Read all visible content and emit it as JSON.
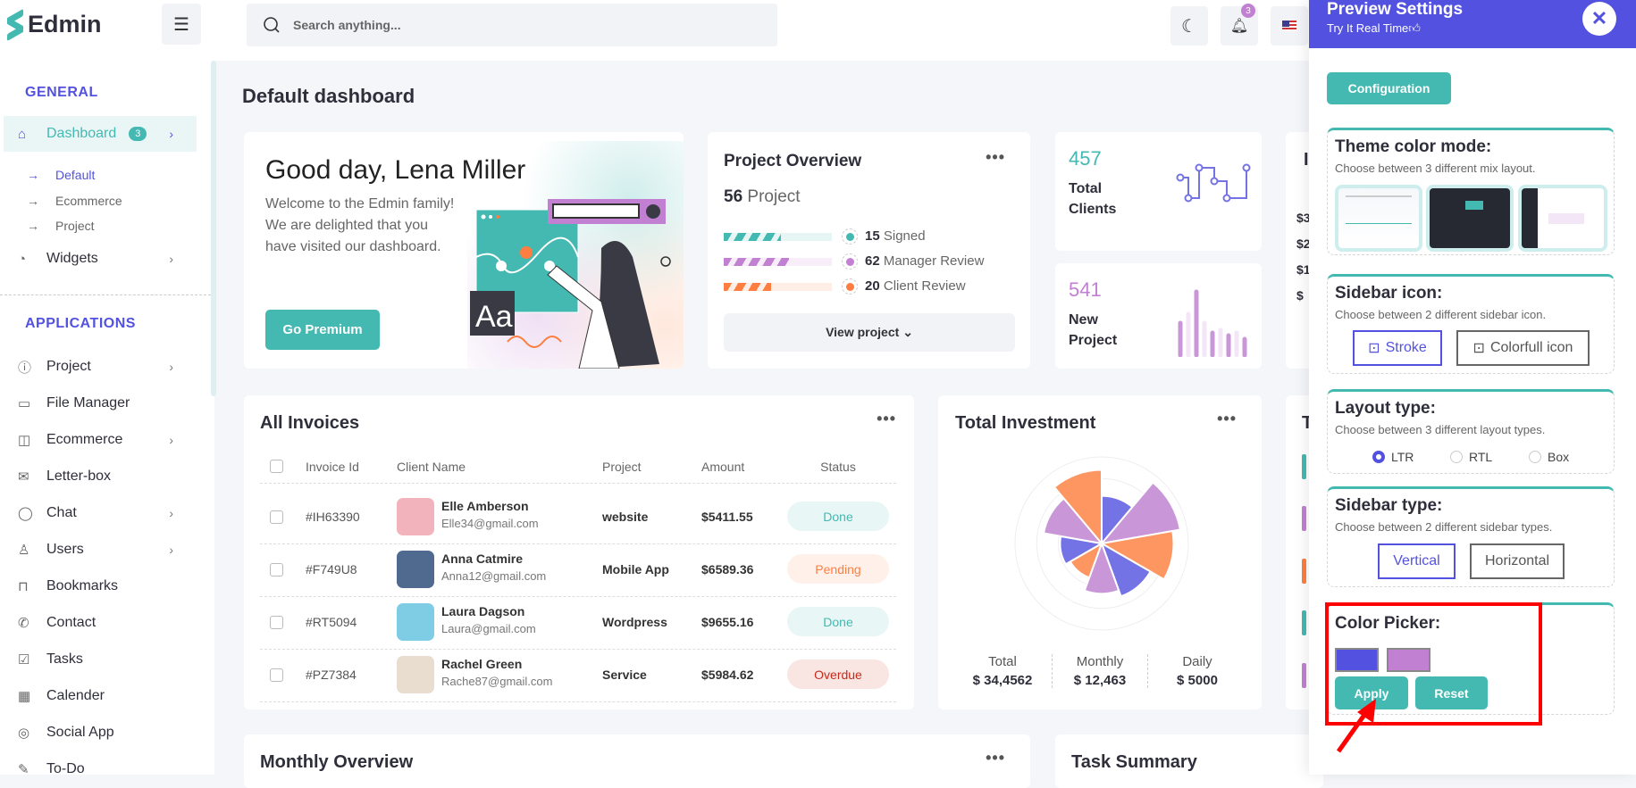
{
  "header": {
    "logo": "Edmin",
    "search_placeholder": "Search anything...",
    "notification_count": "3"
  },
  "sidebar": {
    "general_title": "GENERAL",
    "dashboard": {
      "label": "Dashboard",
      "badge": "3"
    },
    "dashboard_sub": [
      "Default",
      "Ecommerce",
      "Project"
    ],
    "widgets": "Widgets",
    "applications_title": "APPLICATIONS",
    "apps": [
      "Project",
      "File Manager",
      "Ecommerce",
      "Letter-box",
      "Chat",
      "Users",
      "Bookmarks",
      "Contact",
      "Tasks",
      "Calender",
      "Social App",
      "To-Do"
    ]
  },
  "page_title": "Default dashboard",
  "hero": {
    "greeting": "Good day, Lena Miller",
    "line1": "Welcome to the Edmin family!",
    "line2": "We are delighted that you",
    "line3": "have visited our dashboard.",
    "button": "Go Premium",
    "illustration_text": "Aa"
  },
  "project_overview": {
    "title": "Project Overview",
    "count": "56",
    "count_label": "Project",
    "items": [
      {
        "value": "15",
        "label": "Signed",
        "fill": 0.53,
        "color": "#43b9b2"
      },
      {
        "value": "62",
        "label": "Manager Review",
        "fill": 0.6,
        "color": "#c280d2"
      },
      {
        "value": "20",
        "label": "Client Review",
        "fill": 0.44,
        "color": "#fd7e40"
      }
    ],
    "button": "View project"
  },
  "stats": [
    {
      "value": "457",
      "line1": "Total",
      "line2": "Clients",
      "color": "#43b9b2"
    },
    {
      "value": "541",
      "line1": "New",
      "line2": "Project",
      "color": "#c280d2"
    }
  ],
  "partial_card": {
    "title": "I",
    "labels": [
      "$3",
      "$2",
      "$1",
      "$"
    ]
  },
  "invoices": {
    "title": "All Invoices",
    "columns": [
      "Invoice Id",
      "Client Name",
      "Project",
      "Amount",
      "Status"
    ],
    "rows": [
      {
        "id": "#IH63390",
        "name": "Elle Amberson",
        "email": "Elle34@gmail.com",
        "project": "website",
        "amount": "$5411.55",
        "status": "Done"
      },
      {
        "id": "#F749U8",
        "name": "Anna Catmire",
        "email": "Anna12@gmail.com",
        "project": "Mobile App",
        "amount": "$6589.36",
        "status": "Pending"
      },
      {
        "id": "#RT5094",
        "name": "Laura Dagson",
        "email": "Laura@gmail.com",
        "project": "Wordpress",
        "amount": "$9655.16",
        "status": "Done"
      },
      {
        "id": "#PZ7384",
        "name": "Rachel Green",
        "email": "Rache87@gmail.com",
        "project": "Service",
        "amount": "$5984.62",
        "status": "Overdue"
      }
    ]
  },
  "investment": {
    "title": "Total Investment",
    "chart": {
      "type": "polar-area",
      "values": [
        55,
        92,
        83,
        65,
        58,
        42,
        48,
        68,
        85
      ],
      "colors": [
        "#7473e6",
        "#c997d8",
        "#fd9660",
        "#7473e6",
        "#c997d8",
        "#fd9660",
        "#7473e6",
        "#c997d8",
        "#fd9660"
      ],
      "max": 100
    },
    "summary": [
      {
        "label": "Total",
        "value": "$ 34,4562"
      },
      {
        "label": "Monthly",
        "value": "$ 12,463"
      },
      {
        "label": "Daily",
        "value": "$ 5000"
      }
    ]
  },
  "bottom": {
    "monthly": "Monthly Overview",
    "tasks": "Task Summary",
    "partial_title": "T"
  },
  "panel": {
    "title": "Preview Settings",
    "subtitle": "Try It Real Time",
    "config": "Configuration",
    "theme": {
      "title": "Theme color mode:",
      "desc": "Choose between 3 different mix layout."
    },
    "sidebar_icon": {
      "title": "Sidebar icon:",
      "desc": "Choose between 2 different sidebar icon.",
      "options": [
        "Stroke",
        "Colorfull icon"
      ]
    },
    "layout": {
      "title": "Layout type:",
      "desc": "Choose between 3 different layout types.",
      "options": [
        "LTR",
        "RTL",
        "Box"
      ],
      "selected": "LTR"
    },
    "sidebar_type": {
      "title": "Sidebar type:",
      "desc": "Choose between 2 different sidebar types.",
      "options": [
        "Vertical",
        "Horizontal"
      ]
    },
    "color_picker": {
      "title": "Color Picker:",
      "primary": "#5352e0",
      "secondary": "#c280d2",
      "apply": "Apply",
      "reset": "Reset"
    }
  }
}
